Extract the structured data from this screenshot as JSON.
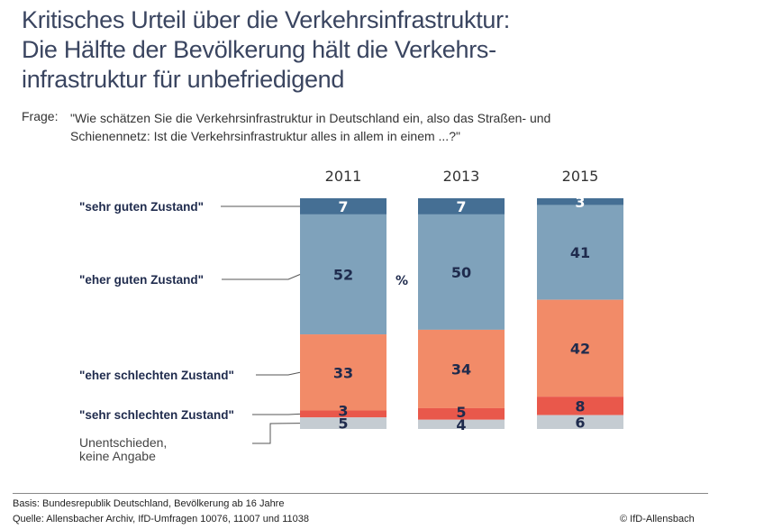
{
  "title_lines": [
    "Kritisches Urteil über die Verkehrsinfrastruktur:",
    "Die Hälfte der Bevölkerung hält die Verkehrs-",
    "infrastruktur für unbefriedigend"
  ],
  "question": {
    "label": "Frage:",
    "lines": [
      "\"Wie schätzen Sie die Verkehrsinfrastruktur in Deutschland ein, also das Straßen- und",
      "Schienennetz: Ist die Verkehrsinfrastruktur alles in allem in einem ...?\""
    ]
  },
  "chart_data": {
    "type": "bar",
    "stacked": true,
    "unit_label": "%",
    "categories": [
      "2011",
      "2013",
      "2015"
    ],
    "series": [
      {
        "name": "\"sehr guten Zustand\"",
        "color": "#456f94",
        "label_color": "#ffffff",
        "values": [
          7,
          7,
          3
        ]
      },
      {
        "name": "\"eher guten Zustand\"",
        "color": "#7fa2bb",
        "label_color": "#1f2b4d",
        "values": [
          52,
          50,
          41
        ]
      },
      {
        "name": "\"eher schlechten Zustand\"",
        "color": "#f28b68",
        "label_color": "#1f2b4d",
        "values": [
          33,
          34,
          42
        ]
      },
      {
        "name": "\"sehr schlechten Zustand\"",
        "color": "#e9584b",
        "label_color": "#1f2b4d",
        "values": [
          3,
          5,
          8
        ]
      },
      {
        "name": "Unentschieden, keine Angabe",
        "color": "#c5ccd2",
        "label_color": "#1f2b4d",
        "values": [
          5,
          4,
          6
        ]
      }
    ]
  },
  "footer": {
    "basis": "Basis: Bundesrepublik Deutschland, Bevölkerung ab 16 Jahre",
    "source": "Quelle: Allensbacher Archiv, IfD-Umfragen 10076, 11007 und 11038",
    "copyright": "© IfD-Allensbach"
  }
}
